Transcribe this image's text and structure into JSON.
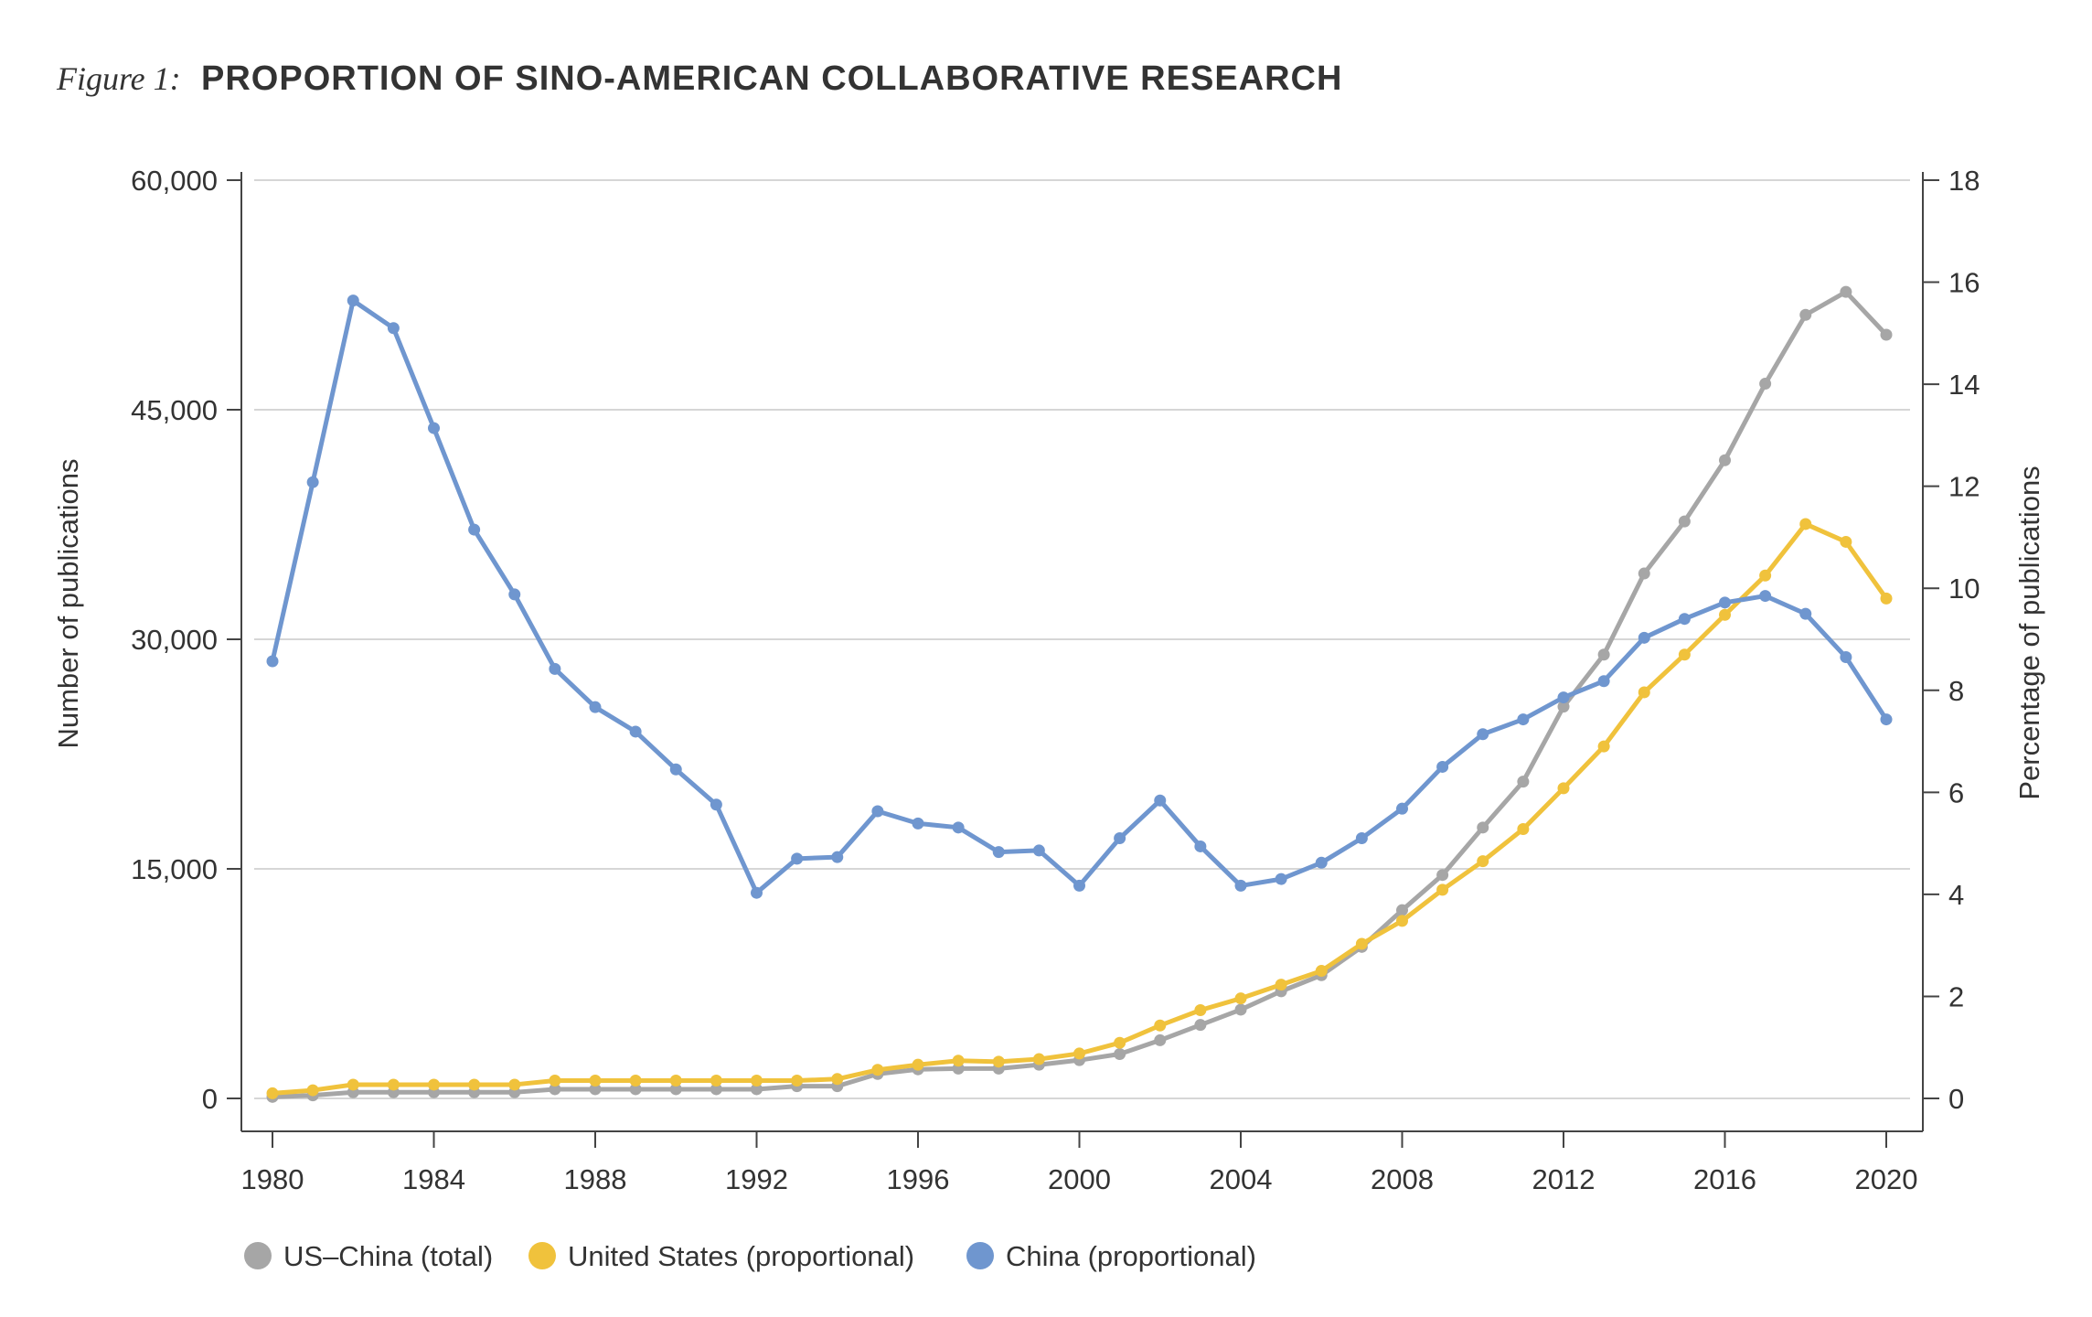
{
  "figure_label": "Figure 1:",
  "chart_data": {
    "type": "line",
    "title": "PROPORTION OF SINO-AMERICAN COLLABORATIVE RESEARCH",
    "ylabel": "Number of publications",
    "y2label": "Percentage of publications",
    "xlabel": "",
    "xlim": [
      1980,
      2020
    ],
    "ylim": [
      0,
      60000
    ],
    "y2lim": [
      0,
      18
    ],
    "xticks": [
      "1980",
      "1984",
      "1988",
      "1992",
      "1996",
      "2000",
      "2004",
      "2008",
      "2012",
      "2016",
      "2020"
    ],
    "yticks": [
      "0",
      "15,000",
      "30,000",
      "45,000",
      "60,000"
    ],
    "y2ticks": [
      "0",
      "2",
      "4",
      "6",
      "8",
      "10",
      "12",
      "14",
      "16",
      "18"
    ],
    "grid": "horizontal",
    "legend_position": "bottom-left",
    "x": [
      1980,
      1981,
      1982,
      1983,
      1984,
      1985,
      1986,
      1987,
      1988,
      1989,
      1990,
      1991,
      1992,
      1993,
      1994,
      1995,
      1996,
      1997,
      1998,
      1999,
      2000,
      2001,
      2002,
      2003,
      2004,
      2005,
      2006,
      2007,
      2008,
      2009,
      2010,
      2011,
      2012,
      2013,
      2014,
      2015,
      2016,
      2017,
      2018,
      2019,
      2020
    ],
    "series": [
      {
        "name": "US–China (total)",
        "axis": "left",
        "color": "#a6a6a6",
        "values": [
          100,
          200,
          400,
          400,
          400,
          400,
          400,
          600,
          600,
          600,
          600,
          600,
          600,
          800,
          800,
          1600,
          1900,
          1950,
          1950,
          2200,
          2500,
          2900,
          3800,
          4800,
          5800,
          7000,
          8050,
          9900,
          12300,
          14600,
          17700,
          20700,
          25600,
          29000,
          34300,
          37700,
          41700,
          46700,
          51200,
          52700,
          49900
        ]
      },
      {
        "name": "United States (proportional)",
        "axis": "right",
        "color": "#f0c23c",
        "values": [
          0.1,
          0.16,
          0.27,
          0.27,
          0.27,
          0.27,
          0.27,
          0.35,
          0.35,
          0.35,
          0.35,
          0.35,
          0.35,
          0.35,
          0.38,
          0.56,
          0.66,
          0.74,
          0.72,
          0.77,
          0.88,
          1.09,
          1.43,
          1.73,
          1.96,
          2.23,
          2.5,
          3.03,
          3.48,
          4.09,
          4.65,
          5.28,
          6.08,
          6.9,
          7.96,
          8.7,
          9.48,
          10.25,
          11.26,
          10.91,
          9.8
        ]
      },
      {
        "name": "China (proportional)",
        "axis": "right",
        "color": "#6f96cf",
        "values": [
          8.57,
          12.08,
          15.64,
          15.1,
          13.14,
          11.15,
          9.88,
          8.42,
          7.67,
          7.19,
          6.45,
          5.76,
          4.03,
          4.7,
          4.73,
          5.63,
          5.39,
          5.31,
          4.83,
          4.86,
          4.17,
          5.1,
          5.84,
          4.94,
          4.17,
          4.3,
          4.62,
          5.1,
          5.68,
          6.5,
          7.14,
          7.43,
          7.86,
          8.18,
          9.03,
          9.4,
          9.72,
          9.85,
          9.5,
          8.65,
          7.43
        ]
      }
    ]
  }
}
